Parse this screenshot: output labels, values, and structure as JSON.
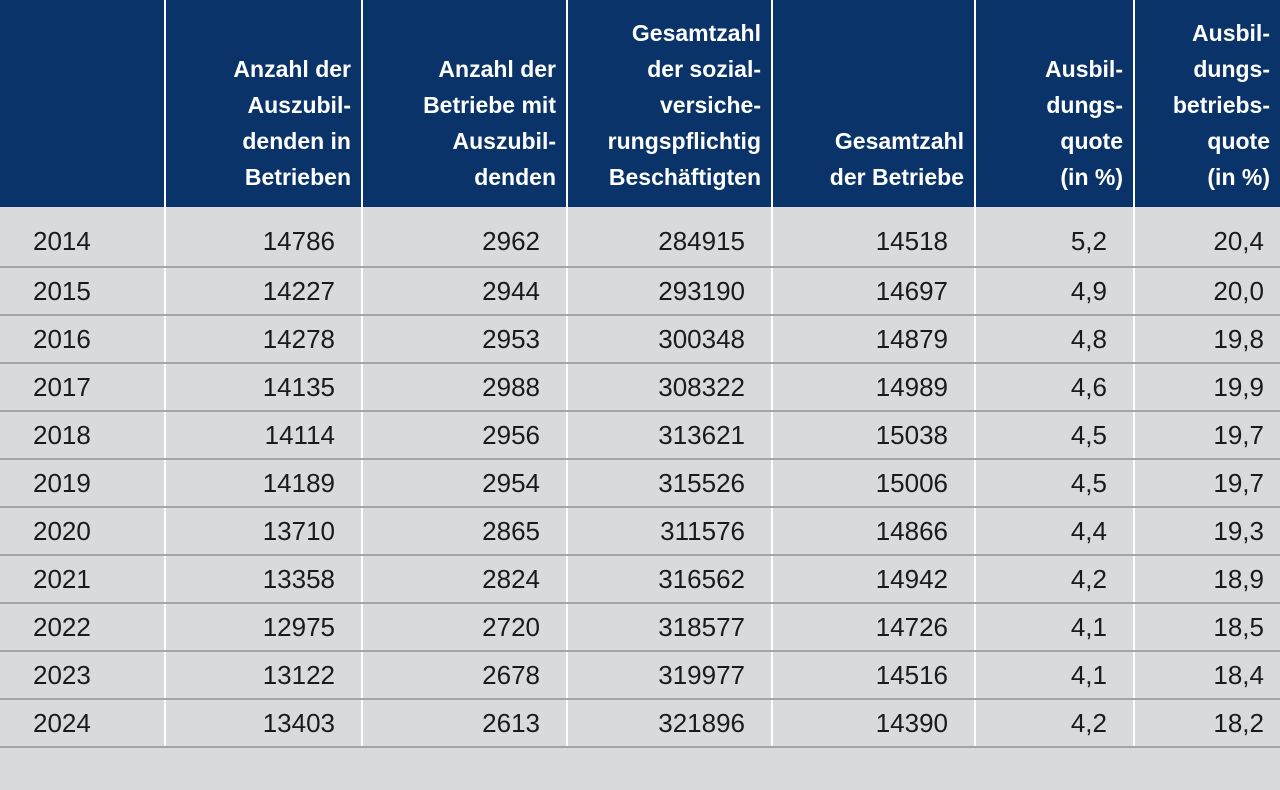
{
  "table": {
    "headers": [
      "",
      "Anzahl der\nAuszubil-\ndenden in\nBetrieben",
      "Anzahl der\nBetriebe mit\nAuszubil-\ndenden",
      "Gesamtzahl\nder sozial-\nversiche-\nrungspflichtig\nBeschäftigten",
      "Gesamtzahl\nder Betriebe",
      "Ausbil-\ndungs-\nquote\n(in %)",
      "Ausbil-\ndungs-\nbetriebs-\nquote\n(in %)"
    ],
    "rows": [
      [
        "2014",
        "14786",
        "2962",
        "284915",
        "14518",
        "5,2",
        "20,4"
      ],
      [
        "2015",
        "14227",
        "2944",
        "293190",
        "14697",
        "4,9",
        "20,0"
      ],
      [
        "2016",
        "14278",
        "2953",
        "300348",
        "14879",
        "4,8",
        "19,8"
      ],
      [
        "2017",
        "14135",
        "2988",
        "308322",
        "14989",
        "4,6",
        "19,9"
      ],
      [
        "2018",
        "14114",
        "2956",
        "313621",
        "15038",
        "4,5",
        "19,7"
      ],
      [
        "2019",
        "14189",
        "2954",
        "315526",
        "15006",
        "4,5",
        "19,7"
      ],
      [
        "2020",
        "13710",
        "2865",
        "311576",
        "14866",
        "4,4",
        "19,3"
      ],
      [
        "2021",
        "13358",
        "2824",
        "316562",
        "14942",
        "4,2",
        "18,9"
      ],
      [
        "2022",
        "12975",
        "2720",
        "318577",
        "14726",
        "4,1",
        "18,5"
      ],
      [
        "2023",
        "13122",
        "2678",
        "319977",
        "14516",
        "4,1",
        "18,4"
      ],
      [
        "2024",
        "13403",
        "2613",
        "321896",
        "14390",
        "4,2",
        "18,2"
      ]
    ]
  }
}
